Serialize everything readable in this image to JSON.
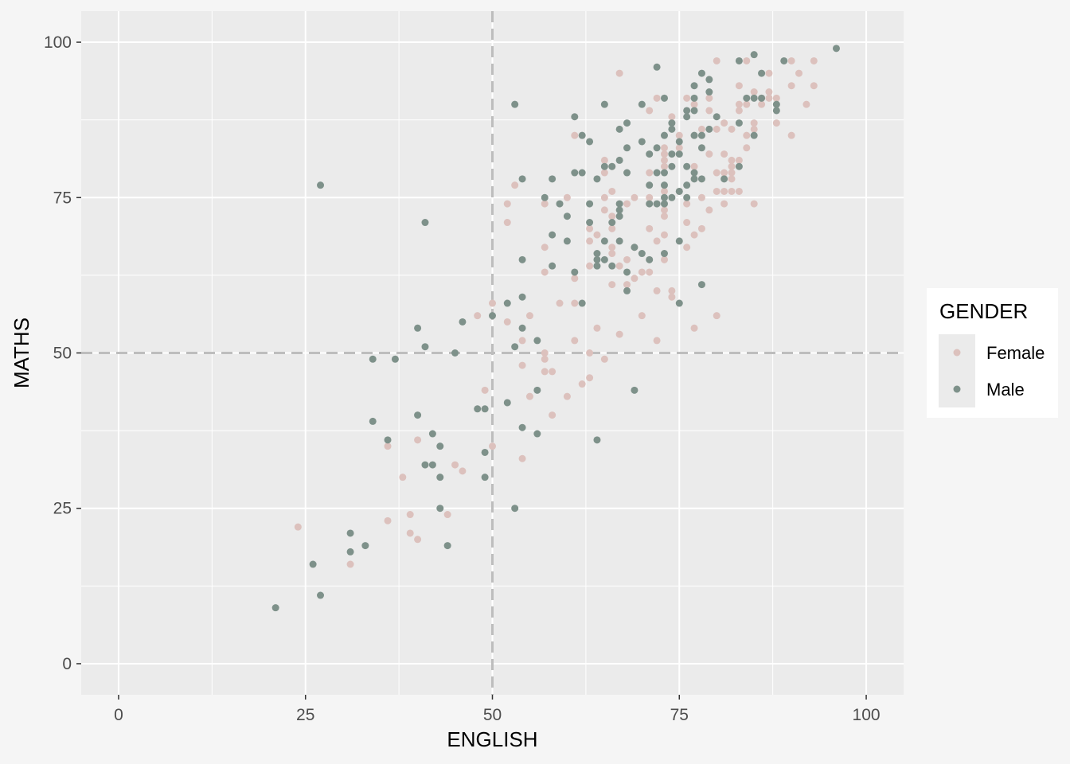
{
  "chart_data": {
    "type": "scatter",
    "xlabel": "ENGLISH",
    "ylabel": "MATHS",
    "xlim": [
      -5,
      105
    ],
    "ylim": [
      -5,
      105
    ],
    "xticks": [
      0,
      25,
      50,
      75,
      100
    ],
    "yticks": [
      0,
      25,
      50,
      75,
      100
    ],
    "grid": true,
    "reference_lines": {
      "x": 50,
      "y": 50,
      "style": "dashed",
      "color": "#bdbdbd"
    },
    "legend": {
      "title": "GENDER",
      "placement": "right",
      "entries": [
        {
          "label": "Female",
          "color": "#dcc1bd"
        },
        {
          "label": "Male",
          "color": "#7e918a"
        }
      ]
    },
    "series": [
      {
        "name": "Female",
        "color": "#dcc1bd",
        "points": [
          [
            24,
            22
          ],
          [
            31,
            16
          ],
          [
            36,
            23
          ],
          [
            36,
            35
          ],
          [
            38,
            30
          ],
          [
            39,
            24
          ],
          [
            39,
            21
          ],
          [
            40,
            20
          ],
          [
            40,
            36
          ],
          [
            44,
            24
          ],
          [
            45,
            32
          ],
          [
            46,
            31
          ],
          [
            48,
            56
          ],
          [
            49,
            44
          ],
          [
            50,
            58
          ],
          [
            50,
            35
          ],
          [
            52,
            74
          ],
          [
            52,
            71
          ],
          [
            52,
            55
          ],
          [
            53,
            77
          ],
          [
            54,
            48
          ],
          [
            54,
            33
          ],
          [
            54,
            52
          ],
          [
            55,
            56
          ],
          [
            55,
            43
          ],
          [
            57,
            63
          ],
          [
            57,
            74
          ],
          [
            57,
            67
          ],
          [
            57,
            50
          ],
          [
            57,
            49
          ],
          [
            57,
            47
          ],
          [
            58,
            47
          ],
          [
            58,
            40
          ],
          [
            59,
            58
          ],
          [
            60,
            75
          ],
          [
            60,
            43
          ],
          [
            61,
            85
          ],
          [
            61,
            62
          ],
          [
            61,
            58
          ],
          [
            61,
            52
          ],
          [
            62,
            45
          ],
          [
            63,
            64
          ],
          [
            63,
            70
          ],
          [
            63,
            68
          ],
          [
            63,
            50
          ],
          [
            63,
            46
          ],
          [
            64,
            54
          ],
          [
            64,
            69
          ],
          [
            65,
            81
          ],
          [
            65,
            79
          ],
          [
            65,
            75
          ],
          [
            65,
            73
          ],
          [
            65,
            49
          ],
          [
            66,
            80
          ],
          [
            66,
            76
          ],
          [
            66,
            72
          ],
          [
            66,
            70
          ],
          [
            66,
            67
          ],
          [
            66,
            61
          ],
          [
            66,
            66
          ],
          [
            67,
            95
          ],
          [
            67,
            53
          ],
          [
            67,
            64
          ],
          [
            68,
            74
          ],
          [
            68,
            65
          ],
          [
            68,
            61
          ],
          [
            69,
            75
          ],
          [
            69,
            67
          ],
          [
            69,
            62
          ],
          [
            70,
            63
          ],
          [
            70,
            56
          ],
          [
            71,
            89
          ],
          [
            71,
            79
          ],
          [
            71,
            75
          ],
          [
            71,
            70
          ],
          [
            71,
            63
          ],
          [
            72,
            91
          ],
          [
            72,
            60
          ],
          [
            72,
            52
          ],
          [
            72,
            68
          ],
          [
            73,
            83
          ],
          [
            73,
            82
          ],
          [
            73,
            81
          ],
          [
            73,
            80
          ],
          [
            73,
            76
          ],
          [
            73,
            73
          ],
          [
            73,
            72
          ],
          [
            73,
            69
          ],
          [
            73,
            65
          ],
          [
            74,
            88
          ],
          [
            74,
            60
          ],
          [
            74,
            59
          ],
          [
            75,
            85
          ],
          [
            75,
            83
          ],
          [
            75,
            76
          ],
          [
            76,
            91
          ],
          [
            76,
            74
          ],
          [
            76,
            71
          ],
          [
            76,
            67
          ],
          [
            77,
            90
          ],
          [
            77,
            85
          ],
          [
            77,
            80
          ],
          [
            77,
            69
          ],
          [
            77,
            54
          ],
          [
            78,
            86
          ],
          [
            78,
            75
          ],
          [
            78,
            70
          ],
          [
            79,
            91
          ],
          [
            79,
            89
          ],
          [
            79,
            82
          ],
          [
            79,
            73
          ],
          [
            80,
            97
          ],
          [
            80,
            86
          ],
          [
            80,
            79
          ],
          [
            80,
            76
          ],
          [
            80,
            56
          ],
          [
            81,
            87
          ],
          [
            81,
            82
          ],
          [
            81,
            79
          ],
          [
            81,
            76
          ],
          [
            81,
            74
          ],
          [
            82,
            86
          ],
          [
            82,
            81
          ],
          [
            82,
            80
          ],
          [
            82,
            79
          ],
          [
            82,
            78
          ],
          [
            82,
            76
          ],
          [
            83,
            93
          ],
          [
            83,
            89
          ],
          [
            83,
            90
          ],
          [
            83,
            81
          ],
          [
            83,
            76
          ],
          [
            84,
            97
          ],
          [
            84,
            90
          ],
          [
            84,
            85
          ],
          [
            84,
            83
          ],
          [
            85,
            92
          ],
          [
            85,
            86
          ],
          [
            85,
            87
          ],
          [
            85,
            74
          ],
          [
            86,
            90
          ],
          [
            86,
            91
          ],
          [
            87,
            95
          ],
          [
            87,
            92
          ],
          [
            87,
            91
          ],
          [
            88,
            91
          ],
          [
            88,
            87
          ],
          [
            90,
            97
          ],
          [
            90,
            93
          ],
          [
            90,
            85
          ],
          [
            91,
            95
          ],
          [
            92,
            90
          ],
          [
            93,
            97
          ],
          [
            93,
            93
          ]
        ]
      },
      {
        "name": "Male",
        "color": "#7e918a",
        "points": [
          [
            21,
            9
          ],
          [
            26,
            16
          ],
          [
            27,
            11
          ],
          [
            27,
            77
          ],
          [
            31,
            21
          ],
          [
            31,
            18
          ],
          [
            33,
            19
          ],
          [
            34,
            49
          ],
          [
            34,
            39
          ],
          [
            36,
            36
          ],
          [
            37,
            49
          ],
          [
            40,
            54
          ],
          [
            40,
            40
          ],
          [
            41,
            71
          ],
          [
            41,
            51
          ],
          [
            41,
            32
          ],
          [
            42,
            37
          ],
          [
            42,
            32
          ],
          [
            43,
            35
          ],
          [
            43,
            30
          ],
          [
            43,
            25
          ],
          [
            44,
            19
          ],
          [
            45,
            50
          ],
          [
            46,
            55
          ],
          [
            48,
            41
          ],
          [
            49,
            41
          ],
          [
            49,
            34
          ],
          [
            49,
            30
          ],
          [
            50,
            56
          ],
          [
            52,
            58
          ],
          [
            52,
            42
          ],
          [
            53,
            90
          ],
          [
            53,
            51
          ],
          [
            53,
            25
          ],
          [
            54,
            78
          ],
          [
            54,
            65
          ],
          [
            54,
            59
          ],
          [
            54,
            54
          ],
          [
            54,
            38
          ],
          [
            56,
            52
          ],
          [
            56,
            44
          ],
          [
            56,
            37
          ],
          [
            57,
            75
          ],
          [
            58,
            78
          ],
          [
            58,
            69
          ],
          [
            58,
            64
          ],
          [
            59,
            74
          ],
          [
            60,
            72
          ],
          [
            60,
            68
          ],
          [
            61,
            88
          ],
          [
            61,
            79
          ],
          [
            61,
            63
          ],
          [
            62,
            85
          ],
          [
            62,
            79
          ],
          [
            62,
            58
          ],
          [
            63,
            84
          ],
          [
            63,
            74
          ],
          [
            63,
            71
          ],
          [
            64,
            78
          ],
          [
            64,
            66
          ],
          [
            64,
            65
          ],
          [
            64,
            64
          ],
          [
            64,
            36
          ],
          [
            65,
            90
          ],
          [
            65,
            80
          ],
          [
            65,
            68
          ],
          [
            65,
            65
          ],
          [
            66,
            80
          ],
          [
            66,
            71
          ],
          [
            66,
            64
          ],
          [
            67,
            86
          ],
          [
            67,
            81
          ],
          [
            67,
            74
          ],
          [
            67,
            73
          ],
          [
            67,
            72
          ],
          [
            67,
            68
          ],
          [
            68,
            87
          ],
          [
            68,
            83
          ],
          [
            68,
            79
          ],
          [
            68,
            63
          ],
          [
            68,
            60
          ],
          [
            69,
            67
          ],
          [
            69,
            44
          ],
          [
            70,
            90
          ],
          [
            70,
            84
          ],
          [
            70,
            66
          ],
          [
            71,
            82
          ],
          [
            71,
            77
          ],
          [
            71,
            74
          ],
          [
            71,
            65
          ],
          [
            72,
            96
          ],
          [
            72,
            83
          ],
          [
            72,
            79
          ],
          [
            72,
            74
          ],
          [
            73,
            91
          ],
          [
            73,
            85
          ],
          [
            73,
            79
          ],
          [
            73,
            77
          ],
          [
            73,
            75
          ],
          [
            73,
            74
          ],
          [
            73,
            66
          ],
          [
            74,
            87
          ],
          [
            74,
            86
          ],
          [
            74,
            82
          ],
          [
            74,
            80
          ],
          [
            74,
            75
          ],
          [
            75,
            84
          ],
          [
            75,
            82
          ],
          [
            75,
            76
          ],
          [
            75,
            68
          ],
          [
            75,
            58
          ],
          [
            76,
            89
          ],
          [
            76,
            88
          ],
          [
            76,
            80
          ],
          [
            76,
            77
          ],
          [
            76,
            75
          ],
          [
            77,
            93
          ],
          [
            77,
            91
          ],
          [
            77,
            89
          ],
          [
            77,
            85
          ],
          [
            77,
            79
          ],
          [
            77,
            78
          ],
          [
            78,
            95
          ],
          [
            78,
            85
          ],
          [
            78,
            83
          ],
          [
            78,
            78
          ],
          [
            78,
            61
          ],
          [
            79,
            94
          ],
          [
            79,
            92
          ],
          [
            79,
            86
          ],
          [
            80,
            88
          ],
          [
            81,
            78
          ],
          [
            83,
            97
          ],
          [
            83,
            87
          ],
          [
            83,
            80
          ],
          [
            84,
            91
          ],
          [
            85,
            98
          ],
          [
            85,
            91
          ],
          [
            85,
            85
          ],
          [
            86,
            95
          ],
          [
            86,
            91
          ],
          [
            88,
            90
          ],
          [
            88,
            89
          ],
          [
            89,
            97
          ],
          [
            96,
            99
          ]
        ]
      }
    ]
  }
}
